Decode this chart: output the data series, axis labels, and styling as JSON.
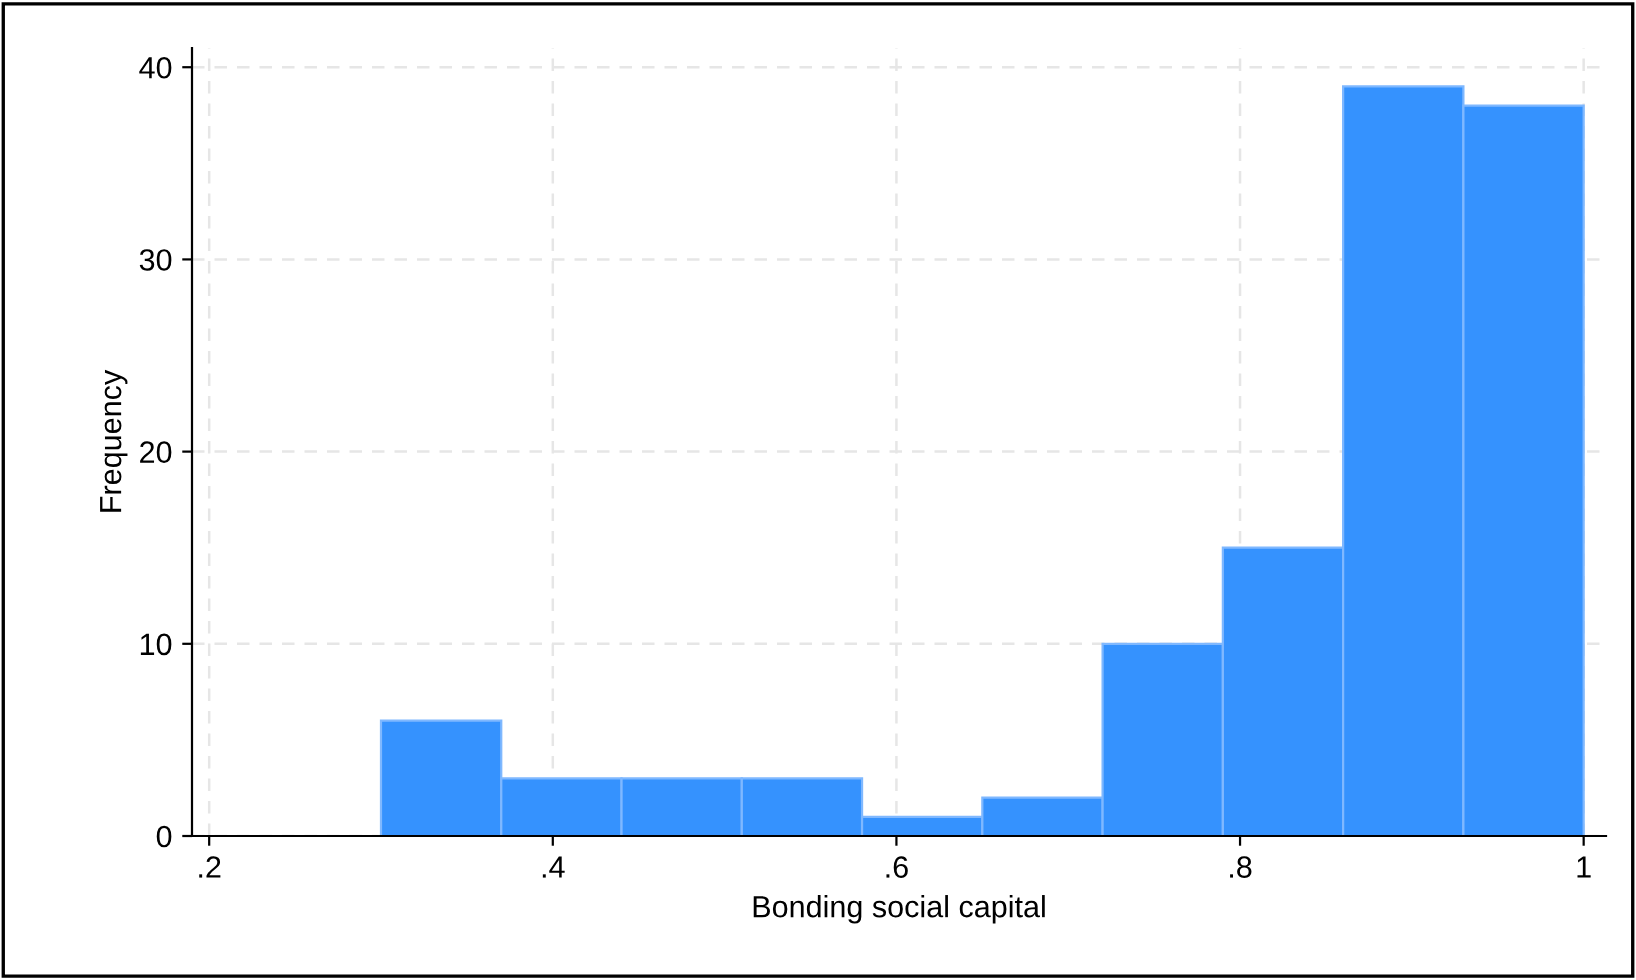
{
  "chart_data": {
    "type": "histogram",
    "xlabel": "Bonding social capital",
    "ylabel": "Frequency",
    "bins": [
      0.3,
      0.37,
      0.44,
      0.51,
      0.58,
      0.65,
      0.72,
      0.79,
      0.86,
      0.93,
      1.0
    ],
    "values": [
      6,
      3,
      3,
      3,
      1,
      2,
      10,
      15,
      39,
      38
    ],
    "color": "#3592fe",
    "xlim": [
      0.19,
      1.013
    ],
    "ylim": [
      0,
      41
    ],
    "xticks": [
      {
        "value": 0.2,
        "label": ".2"
      },
      {
        "value": 0.4,
        "label": ".4"
      },
      {
        "value": 0.6,
        "label": ".6"
      },
      {
        "value": 0.8,
        "label": ".8"
      },
      1
    ],
    "yticks": [
      0,
      10,
      20,
      30,
      40
    ],
    "grid": true
  }
}
